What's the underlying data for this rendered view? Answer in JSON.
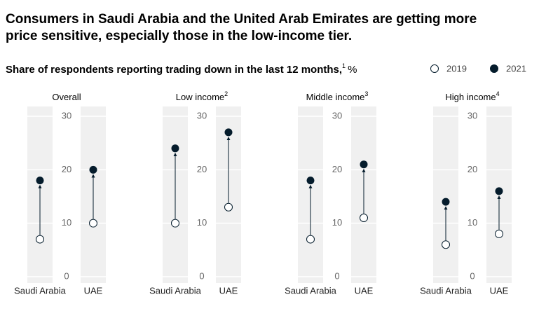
{
  "chart_data": {
    "type": "dumbbell",
    "title": [
      "Consumers in Saudi Arabia and the United Arab Emirates are getting more",
      "price sensitive, especially those in the low-income tier."
    ],
    "subtitle": "Share of respondents reporting trading down in the last 12 months,",
    "subtitle_footnote": "1",
    "unit": "%",
    "series": [
      {
        "name": "2019",
        "color": "#ffffff"
      },
      {
        "name": "2021",
        "color": "#051c2c"
      }
    ],
    "panels": [
      {
        "title": "Overall",
        "categories": [
          "Saudi Arabia",
          "UAE"
        ],
        "ylim": [
          0,
          30
        ],
        "yticks": [
          0,
          10,
          20,
          30
        ],
        "series": [
          {
            "values": [
              7,
              10
            ]
          },
          {
            "values": [
              18,
              20
            ]
          }
        ]
      },
      {
        "title": "Low income",
        "footnote": "2",
        "categories": [
          "Saudi Arabia",
          "UAE"
        ],
        "ylim": [
          0,
          30
        ],
        "yticks": [
          0,
          10,
          20,
          30
        ],
        "series": [
          {
            "values": [
              10,
              13
            ]
          },
          {
            "values": [
              24,
              27
            ]
          }
        ]
      },
      {
        "title": "Middle income",
        "footnote": "3",
        "categories": [
          "Saudi Arabia",
          "UAE"
        ],
        "ylim": [
          0,
          30
        ],
        "yticks": [
          0,
          10,
          20,
          30
        ],
        "series": [
          {
            "values": [
              7,
              11
            ]
          },
          {
            "values": [
              18,
              21
            ]
          }
        ]
      },
      {
        "title": "High income",
        "footnote": "4",
        "categories": [
          "Saudi Arabia",
          "UAE"
        ],
        "ylim": [
          0,
          30
        ],
        "yticks": [
          0,
          10,
          20,
          30
        ],
        "series": [
          {
            "values": [
              6,
              8
            ]
          },
          {
            "values": [
              14,
              16
            ]
          }
        ]
      }
    ]
  }
}
